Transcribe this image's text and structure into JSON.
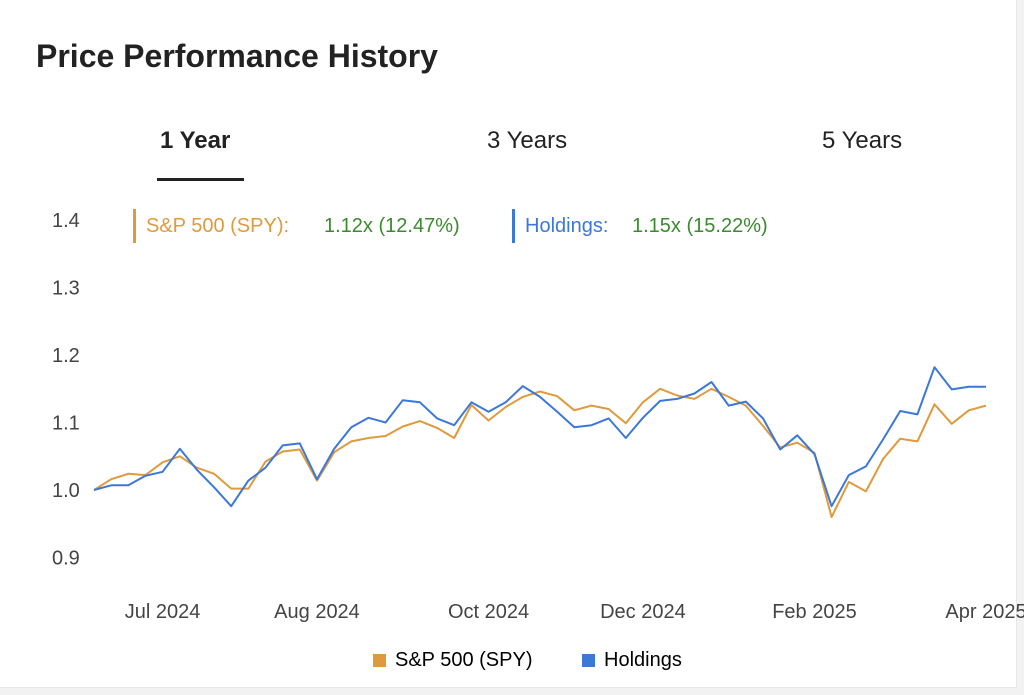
{
  "header": {
    "title": "Price Performance History"
  },
  "tabs": [
    {
      "label": "1 Year",
      "active": true
    },
    {
      "label": "3 Years",
      "active": false
    },
    {
      "label": "5 Years",
      "active": false
    }
  ],
  "summary": [
    {
      "name": "S&P 500 (SPY):",
      "value": "1.12x (12.47%)",
      "color": "#e09a3e"
    },
    {
      "name": "Holdings:",
      "value": "1.15x (15.22%)",
      "color": "#3c78d8"
    }
  ],
  "colors": {
    "value_text": "#3a8a2e",
    "grid": "#e6e6e6"
  },
  "chart_data": {
    "type": "line",
    "title": "",
    "xlabel": "",
    "ylabel": "",
    "ylim": [
      0.9,
      1.4
    ],
    "yticks": [
      "0.9",
      "1.0",
      "1.1",
      "1.2",
      "1.3",
      "1.4"
    ],
    "grid": false,
    "legend_position": "bottom",
    "x_tick_labels": [
      {
        "label": "Jul 2024",
        "index": 4
      },
      {
        "label": "Aug 2024",
        "index": 13
      },
      {
        "label": "Oct 2024",
        "index": 23
      },
      {
        "label": "Dec 2024",
        "index": 32
      },
      {
        "label": "Feb 2025",
        "index": 42
      },
      {
        "label": "Apr 2025",
        "index": 52
      }
    ],
    "series": [
      {
        "name": "S&P 500 (SPY)",
        "color": "#e09a3e",
        "values": [
          1.0,
          1.016,
          1.024,
          1.022,
          1.041,
          1.05,
          1.033,
          1.024,
          1.002,
          1.002,
          1.042,
          1.057,
          1.06,
          1.014,
          1.056,
          1.072,
          1.077,
          1.08,
          1.094,
          1.102,
          1.092,
          1.077,
          1.126,
          1.103,
          1.123,
          1.138,
          1.146,
          1.139,
          1.118,
          1.125,
          1.12,
          1.099,
          1.13,
          1.15,
          1.14,
          1.135,
          1.15,
          1.138,
          1.125,
          1.095,
          1.063,
          1.07,
          1.055,
          0.96,
          1.012,
          0.998,
          1.046,
          1.076,
          1.072,
          1.127,
          1.098,
          1.118,
          1.125
        ]
      },
      {
        "name": "Holdings",
        "color": "#3c78d8",
        "values": [
          1.0,
          1.007,
          1.007,
          1.021,
          1.027,
          1.061,
          1.03,
          1.004,
          0.976,
          1.014,
          1.033,
          1.066,
          1.069,
          1.016,
          1.061,
          1.093,
          1.107,
          1.1,
          1.133,
          1.13,
          1.106,
          1.096,
          1.13,
          1.116,
          1.13,
          1.154,
          1.138,
          1.116,
          1.093,
          1.096,
          1.106,
          1.077,
          1.107,
          1.132,
          1.135,
          1.143,
          1.16,
          1.125,
          1.131,
          1.106,
          1.06,
          1.081,
          1.053,
          0.976,
          1.022,
          1.035,
          1.075,
          1.117,
          1.112,
          1.182,
          1.149,
          1.153,
          1.153
        ]
      }
    ]
  }
}
